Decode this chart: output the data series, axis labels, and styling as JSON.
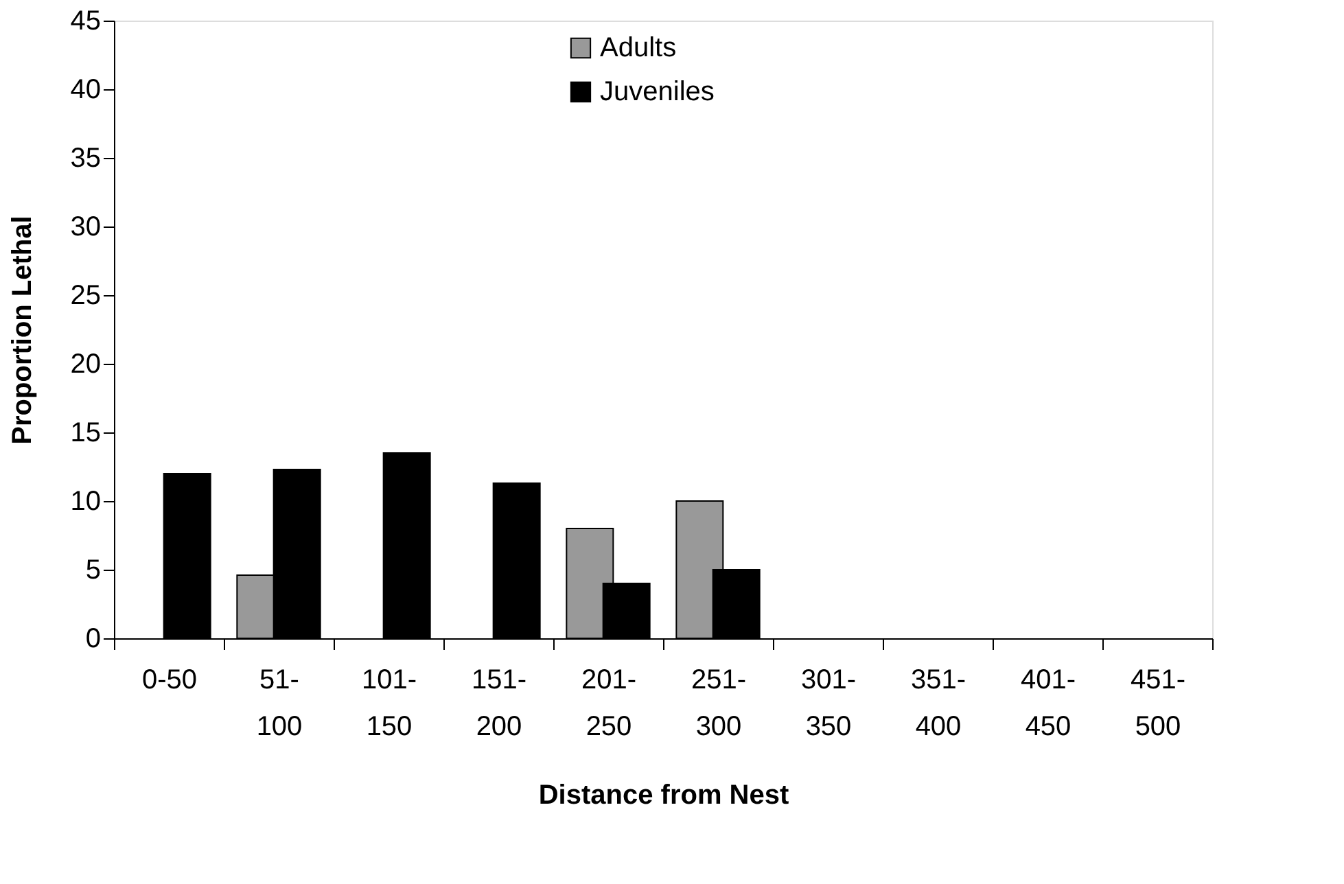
{
  "chart_data": {
    "type": "bar",
    "xlabel": "Distance from Nest",
    "ylabel": "Proportion Lethal",
    "categories": [
      "0-50",
      "51-100",
      "101-150",
      "151-200",
      "201-250",
      "251-300",
      "301-350",
      "351-400",
      "401-450",
      "451-500"
    ],
    "series": [
      {
        "name": "Adults",
        "color": "#999999",
        "values": [
          null,
          4.6,
          null,
          null,
          8,
          10,
          null,
          null,
          null,
          null
        ]
      },
      {
        "name": "Juveniles",
        "color": "#000000",
        "values": [
          12,
          12.3,
          13.5,
          11.3,
          4,
          5,
          null,
          null,
          null,
          null
        ]
      }
    ],
    "ylim": [
      0,
      45
    ],
    "yticks": [
      0,
      5,
      10,
      15,
      20,
      25,
      30,
      35,
      40,
      45
    ],
    "grid": false,
    "legend": "top"
  }
}
